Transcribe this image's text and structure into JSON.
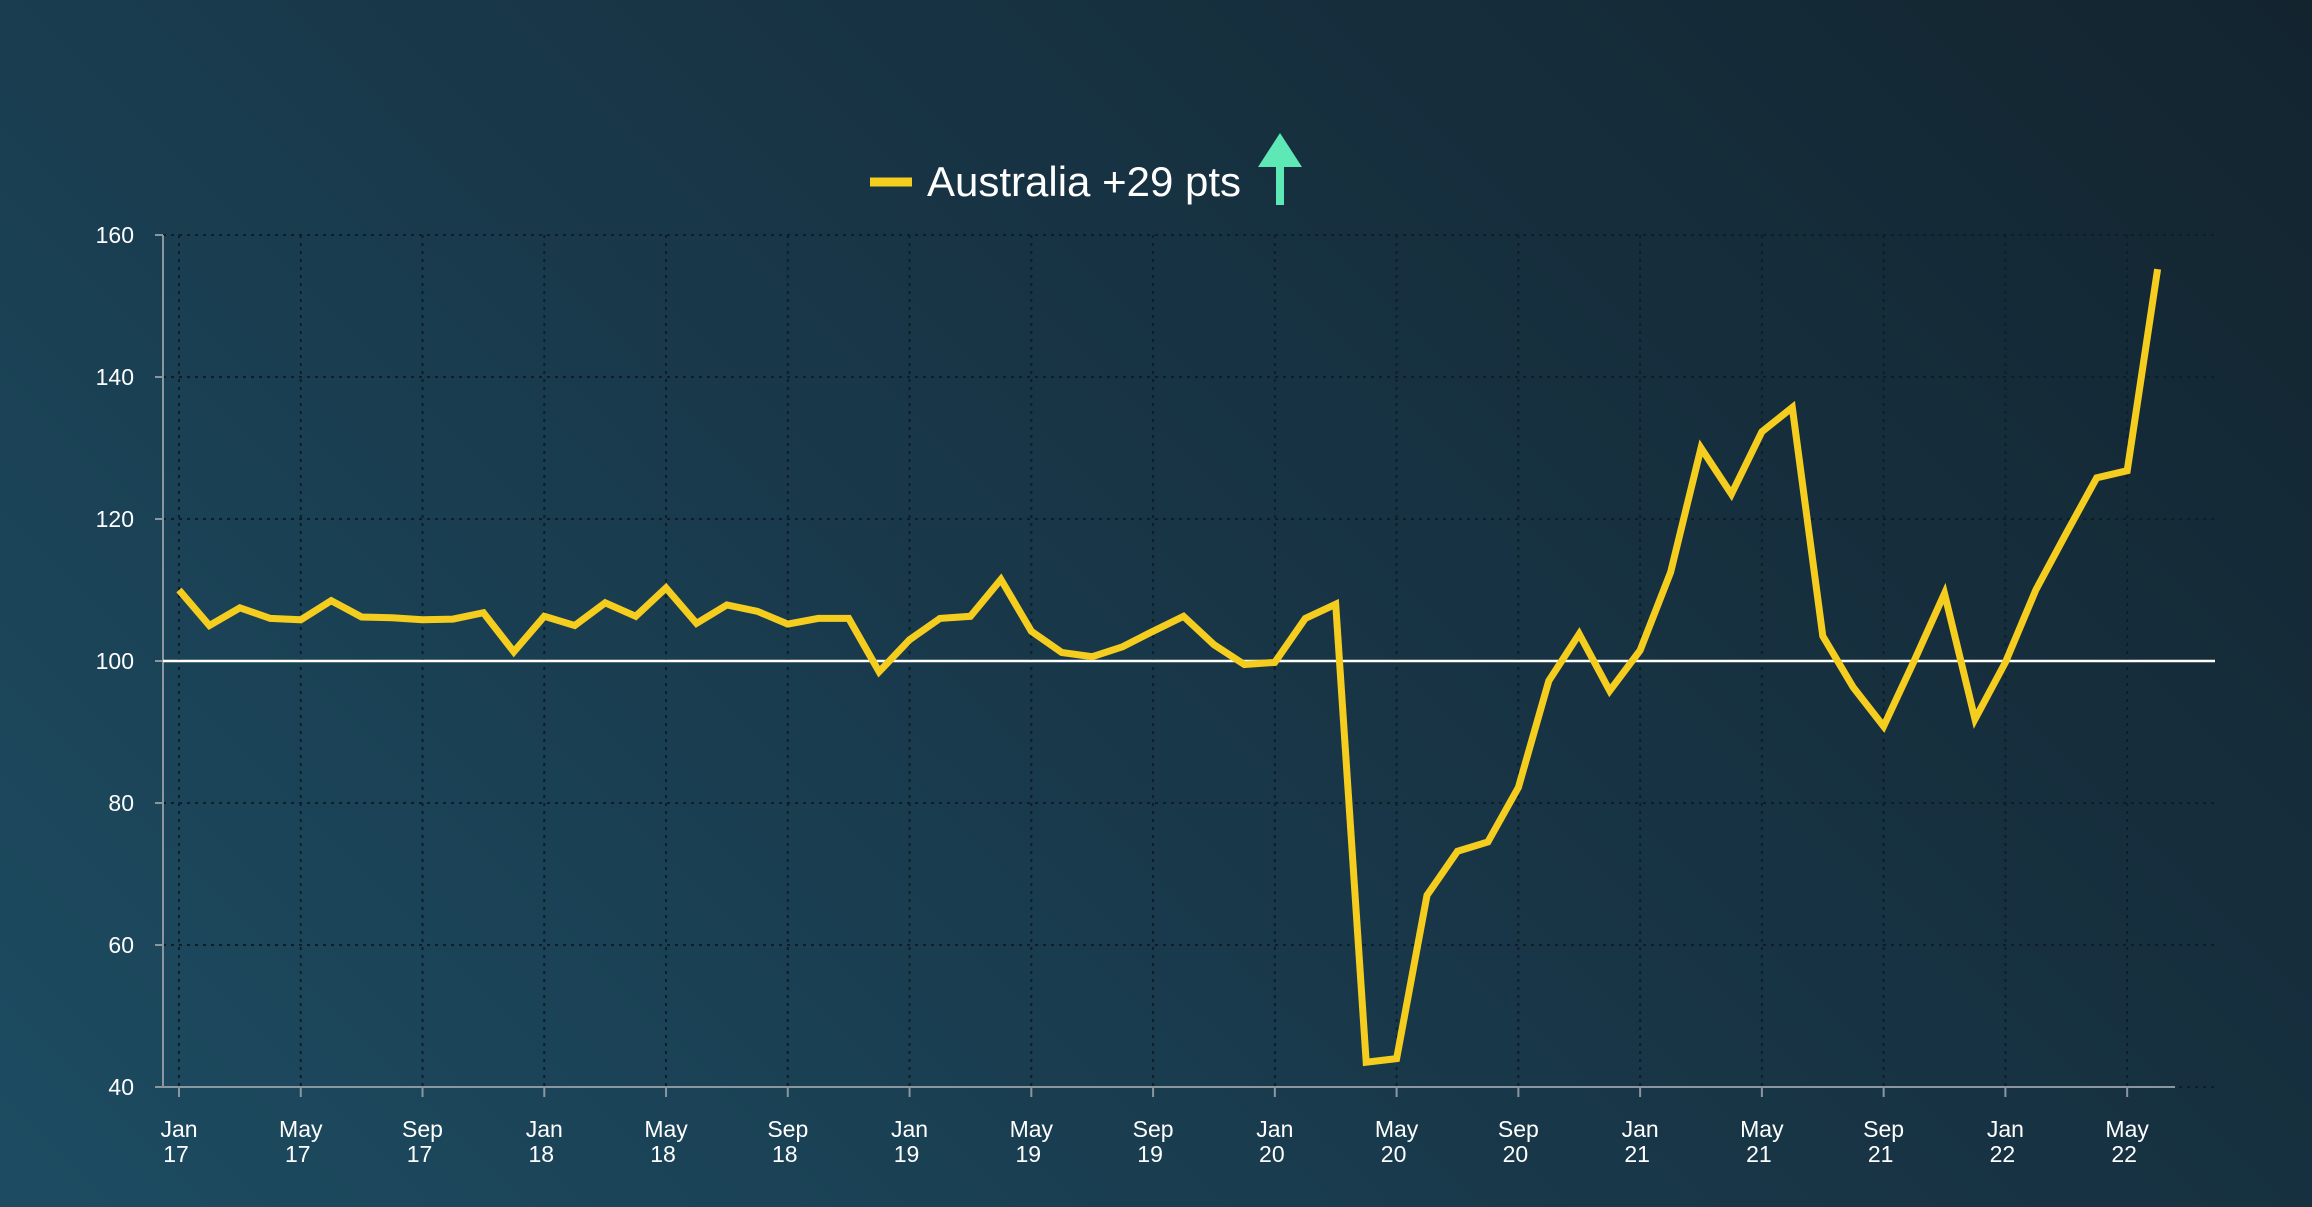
{
  "chart_data": {
    "type": "line",
    "legend": {
      "label": "Australia +29 pts",
      "position": "top-center",
      "indicator_icon": "arrow-up-icon",
      "indicator_color": "#5ee8b5"
    },
    "series": [
      {
        "name": "Australia +29 pts",
        "color": "#f5cd1e",
        "x": [
          "Jan 17",
          "Feb 17",
          "Mar 17",
          "Apr 17",
          "May 17",
          "Jun 17",
          "Jul 17",
          "Aug 17",
          "Sep 17",
          "Oct 17",
          "Nov 17",
          "Dec 17",
          "Jan 18",
          "Feb 18",
          "Mar 18",
          "Apr 18",
          "May 18",
          "Jun 18",
          "Jul 18",
          "Aug 18",
          "Sep 18",
          "Oct 18",
          "Nov 18",
          "Dec 18",
          "Jan 19",
          "Feb 19",
          "Mar 19",
          "Apr 19",
          "May 19",
          "Jun 19",
          "Jul 19",
          "Aug 19",
          "Sep 19",
          "Oct 19",
          "Nov 19",
          "Dec 19",
          "Jan 20",
          "Feb 20",
          "Mar 20",
          "Apr 20",
          "May 20",
          "Jun 20",
          "Jul 20",
          "Aug 20",
          "Sep 20",
          "Oct 20",
          "Nov 20",
          "Dec 20",
          "Jan 21",
          "Feb 21",
          "Mar 21",
          "Apr 21",
          "May 21",
          "Jun 21",
          "Jul 21",
          "Aug 21",
          "Sep 21",
          "Oct 21",
          "Nov 21",
          "Dec 21",
          "Jan 22",
          "Feb 22",
          "Mar 22",
          "Apr 22",
          "May 22",
          "Jun 22"
        ],
        "values": [
          110,
          105,
          107.5,
          106,
          105.8,
          108.5,
          106.2,
          106.1,
          105.8,
          105.9,
          106.8,
          101.3,
          106.3,
          105,
          108.2,
          106.3,
          110.3,
          105.3,
          107.9,
          107,
          105.2,
          106,
          106,
          98.5,
          103,
          106,
          106.3,
          111.5,
          104.2,
          101.2,
          100.6,
          102,
          104.2,
          106.3,
          102.3,
          99.5,
          99.8,
          106,
          108,
          43.5,
          44,
          67,
          73.2,
          74.5,
          82.2,
          97.2,
          103.8,
          95.8,
          101.5,
          112.5,
          130,
          123.5,
          132.3,
          135.7,
          103.5,
          96.3,
          90.8,
          100,
          109.5,
          91.8,
          99.8,
          110,
          118,
          125.8,
          126.8,
          155.2
        ]
      }
    ],
    "x_ticks": [
      {
        "line1": "Jan",
        "line2": "17",
        "index": 0
      },
      {
        "line1": "May",
        "line2": "17",
        "index": 4
      },
      {
        "line1": "Sep",
        "line2": "17",
        "index": 8
      },
      {
        "line1": "Jan",
        "line2": "18",
        "index": 12
      },
      {
        "line1": "May",
        "line2": "18",
        "index": 16
      },
      {
        "line1": "Sep",
        "line2": "18",
        "index": 20
      },
      {
        "line1": "Jan",
        "line2": "19",
        "index": 24
      },
      {
        "line1": "May",
        "line2": "19",
        "index": 28
      },
      {
        "line1": "Sep",
        "line2": "19",
        "index": 32
      },
      {
        "line1": "Jan",
        "line2": "20",
        "index": 36
      },
      {
        "line1": "May",
        "line2": "20",
        "index": 40
      },
      {
        "line1": "Sep",
        "line2": "20",
        "index": 44
      },
      {
        "line1": "Jan",
        "line2": "21",
        "index": 48
      },
      {
        "line1": "May",
        "line2": "21",
        "index": 52
      },
      {
        "line1": "Sep",
        "line2": "21",
        "index": 56
      },
      {
        "line1": "Jan",
        "line2": "22",
        "index": 60
      },
      {
        "line1": "May",
        "line2": "22",
        "index": 64
      }
    ],
    "y_ticks": [
      40,
      60,
      80,
      100,
      120,
      140,
      160
    ],
    "ylim": [
      40,
      160
    ],
    "reference_line": {
      "value": 100,
      "color": "#ffffff"
    },
    "grid": true,
    "grid_style": "dotted",
    "axis_color": "#8a97a0"
  }
}
